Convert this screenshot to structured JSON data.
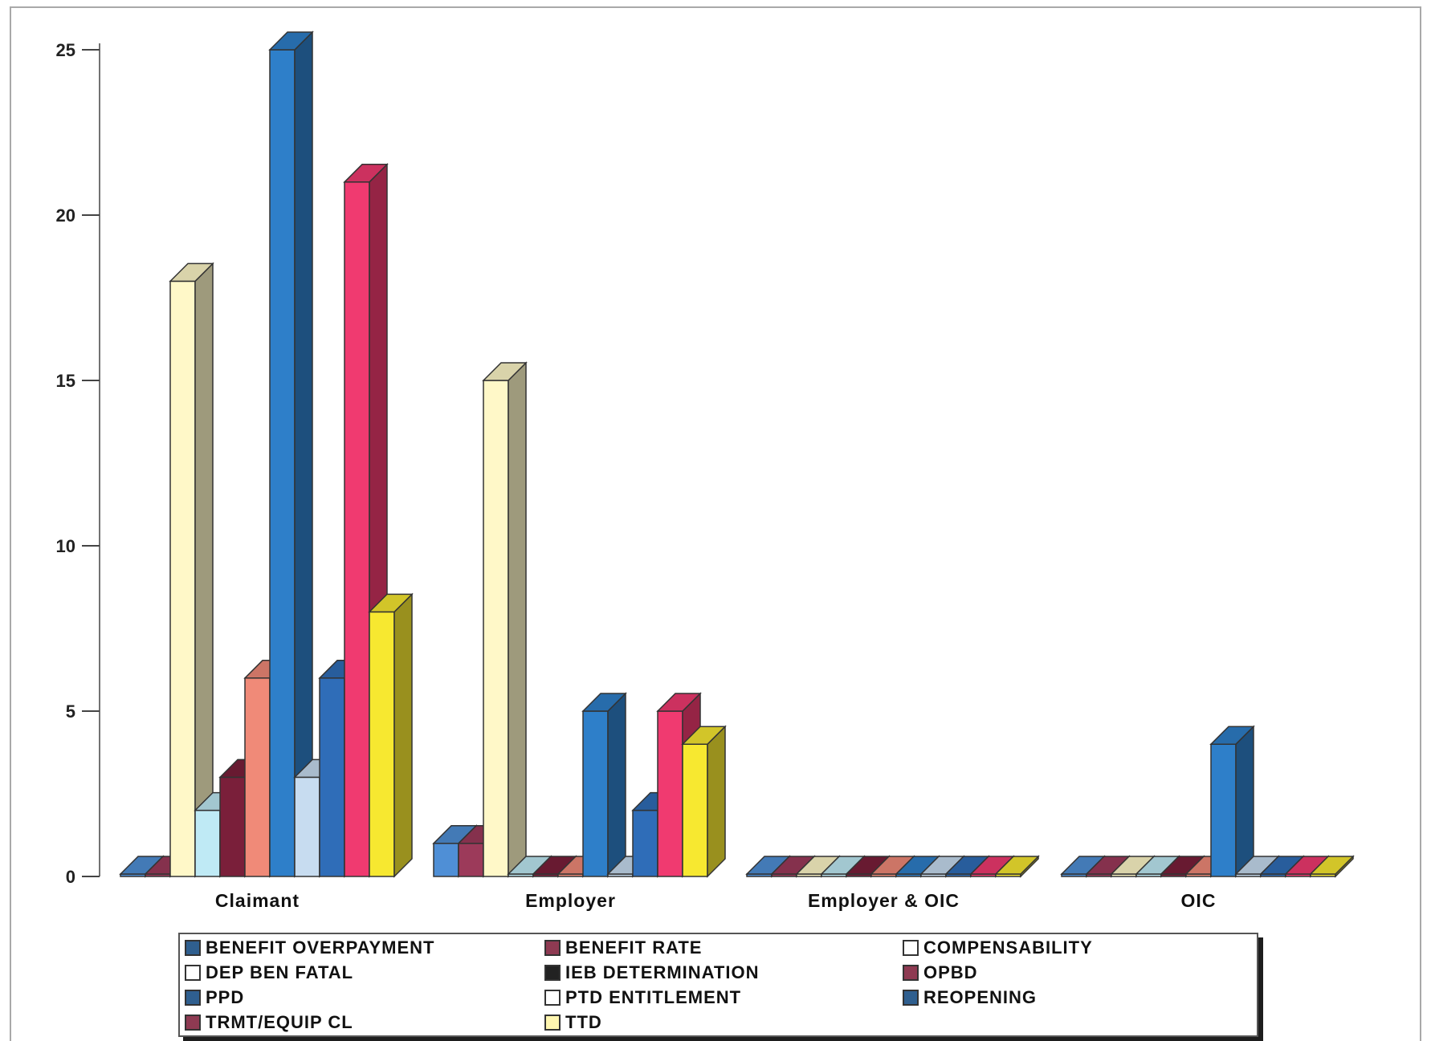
{
  "chart_data": {
    "type": "bar",
    "title": "",
    "xlabel": "",
    "ylabel": "",
    "ylim": [
      0,
      25
    ],
    "yticks": [
      "0",
      "5",
      "10",
      "15",
      "20",
      "25"
    ],
    "categories": [
      "Claimant",
      "Employer",
      "Employer & OIC",
      "OIC"
    ],
    "legend_position": "bottom",
    "series": [
      {
        "name": "BENEFIT OVERPAYMENT",
        "color": "#4f8fd6",
        "values": [
          0,
          1,
          0,
          0
        ]
      },
      {
        "name": "BENEFIT RATE",
        "color": "#9c3a5a",
        "values": [
          0,
          1,
          0,
          0
        ]
      },
      {
        "name": "COMPENSABILITY",
        "color": "#fff8c8",
        "values": [
          18,
          15,
          0,
          0
        ]
      },
      {
        "name": "DEP BEN FATAL",
        "color": "#bfeaf5",
        "values": [
          2,
          0,
          0,
          0
        ]
      },
      {
        "name": "IEB DETERMINATION",
        "color": "#7a1f3a",
        "values": [
          3,
          0,
          0,
          0
        ]
      },
      {
        "name": "OPBD",
        "color": "#f08a78",
        "values": [
          6,
          0,
          0,
          0
        ]
      },
      {
        "name": "PPD",
        "color": "#2e7fc9",
        "values": [
          25,
          5,
          0,
          4
        ]
      },
      {
        "name": "PTD ENTITLEMENT",
        "color": "#c7dcf0",
        "values": [
          3,
          0,
          0,
          0
        ]
      },
      {
        "name": "REOPENING",
        "color": "#2f6db8",
        "values": [
          6,
          2,
          0,
          0
        ]
      },
      {
        "name": "TRMT/EQUIP CL",
        "color": "#f03a70",
        "values": [
          21,
          5,
          0,
          0
        ]
      },
      {
        "name": "TTD",
        "color": "#f7e830",
        "values": [
          8,
          4,
          0,
          0
        ]
      }
    ]
  },
  "legend": {
    "items": [
      {
        "label": "BENEFIT OVERPAYMENT",
        "swatch": "#2f5f8f"
      },
      {
        "label": "BENEFIT RATE",
        "swatch": "#8e3a52"
      },
      {
        "label": "COMPENSABILITY",
        "swatch": "#ffffff"
      },
      {
        "label": "DEP BEN FATAL",
        "swatch": "#ffffff"
      },
      {
        "label": "IEB DETERMINATION",
        "swatch": "#222222"
      },
      {
        "label": "OPBD",
        "swatch": "#8e3a52"
      },
      {
        "label": "PPD",
        "swatch": "#2f5f8f"
      },
      {
        "label": "PTD ENTITLEMENT",
        "swatch": "#ffffff"
      },
      {
        "label": "REOPENING",
        "swatch": "#2f5f8f"
      },
      {
        "label": "TRMT/EQUIP CL",
        "swatch": "#8e3a52"
      },
      {
        "label": "TTD",
        "swatch": "#fff6b0"
      }
    ]
  }
}
